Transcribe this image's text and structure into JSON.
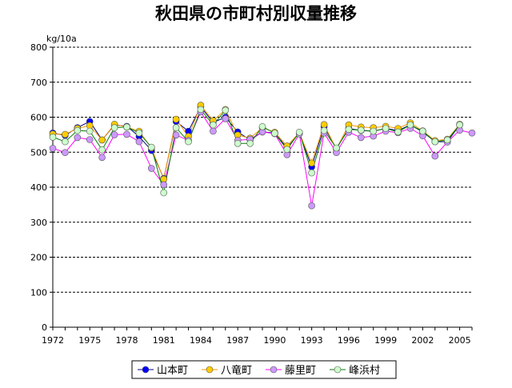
{
  "chart_data": {
    "type": "line",
    "title": "秋田県の市町村別収量推移",
    "ylabel": "kg/10a",
    "xlabel": "",
    "ylim": [
      0,
      800
    ],
    "xlim": [
      1972,
      2006
    ],
    "yticks": [
      0,
      100,
      200,
      300,
      400,
      500,
      600,
      700,
      800
    ],
    "xticks": [
      1972,
      1975,
      1978,
      1981,
      1984,
      1987,
      1990,
      1993,
      1996,
      1999,
      2002,
      2005
    ],
    "grid": "horizontal-dashed",
    "legend_position": "bottom",
    "x": [
      1972,
      1973,
      1974,
      1975,
      1976,
      1977,
      1978,
      1979,
      1980,
      1981,
      1982,
      1983,
      1984,
      1985,
      1986,
      1987,
      1988,
      1989,
      1990,
      1991,
      1992,
      1993,
      1994,
      1995,
      1996,
      1997,
      1998,
      1999,
      2000,
      2001,
      2002,
      2003,
      2004,
      2005,
      2006
    ],
    "series": [
      {
        "name": "山本町",
        "line_color": "#000080",
        "marker_color": "#0000ff",
        "values": [
          555,
          548,
          570,
          588,
          535,
          578,
          574,
          545,
          505,
          425,
          588,
          560,
          630,
          585,
          600,
          558,
          535,
          558,
          555,
          512,
          555,
          458,
          573,
          510,
          568,
          562,
          560,
          568,
          562,
          578,
          558,
          530,
          530,
          578,
          null
        ]
      },
      {
        "name": "八竜町",
        "line_color": "#ff9900",
        "marker_color": "#ffcc00",
        "values": [
          552,
          551,
          568,
          576,
          535,
          580,
          572,
          560,
          512,
          423,
          594,
          545,
          634,
          590,
          622,
          549,
          540,
          570,
          557,
          518,
          556,
          469,
          579,
          509,
          578,
          572,
          570,
          574,
          568,
          584,
          561,
          533,
          537,
          580,
          null
        ]
      },
      {
        "name": "藤里町",
        "line_color": "#ff00ff",
        "marker_color": "#cc99ff",
        "values": [
          511,
          499,
          542,
          536,
          485,
          550,
          551,
          530,
          454,
          407,
          549,
          534,
          615,
          560,
          596,
          534,
          537,
          558,
          553,
          493,
          552,
          347,
          555,
          499,
          557,
          542,
          546,
          560,
          556,
          568,
          547,
          489,
          529,
          563,
          555
        ]
      },
      {
        "name": "峰浜村",
        "line_color": "#008000",
        "marker_color": "#ccffcc",
        "values": [
          543,
          530,
          562,
          560,
          507,
          570,
          572,
          555,
          514,
          384,
          570,
          530,
          622,
          578,
          620,
          525,
          525,
          573,
          554,
          508,
          557,
          441,
          562,
          512,
          565,
          563,
          560,
          568,
          558,
          578,
          560,
          530,
          535,
          578,
          null
        ]
      }
    ]
  }
}
